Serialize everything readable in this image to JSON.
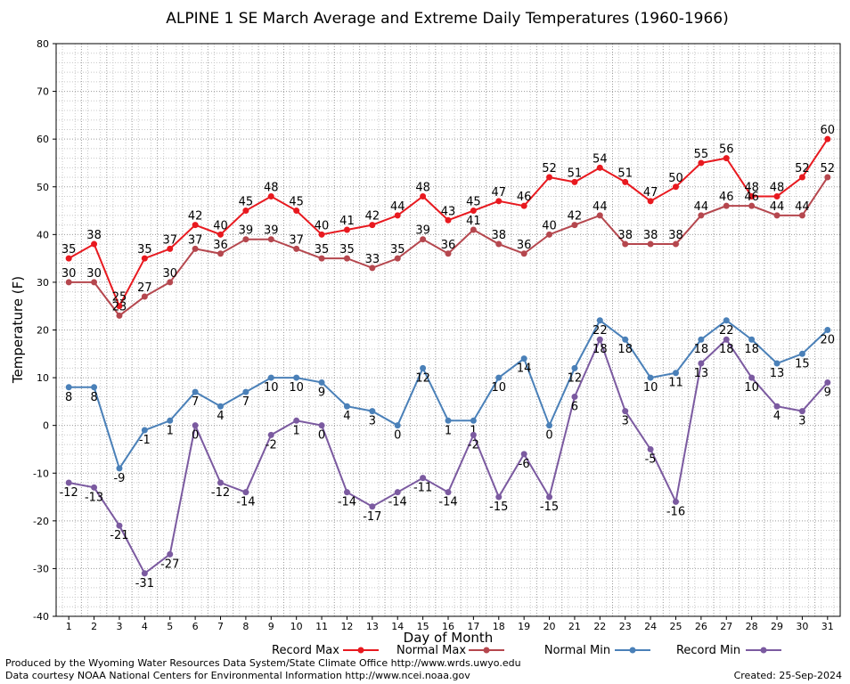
{
  "chart_data": {
    "type": "line",
    "title": "ALPINE 1 SE March Average and Extreme Daily Temperatures (1960-1966)",
    "xlabel": "Day of Month",
    "ylabel": "Temperature (F)",
    "ylim": [
      -40,
      80
    ],
    "yticks": [
      80,
      70,
      60,
      50,
      40,
      30,
      20,
      10,
      0,
      -10,
      -20,
      -30,
      -40
    ],
    "x": [
      1,
      2,
      3,
      4,
      5,
      6,
      7,
      8,
      9,
      10,
      11,
      12,
      13,
      14,
      15,
      16,
      17,
      18,
      19,
      20,
      21,
      22,
      23,
      24,
      25,
      26,
      27,
      28,
      29,
      30,
      31
    ],
    "grid": true,
    "series": [
      {
        "name": "Record Max",
        "color": "#e8191f",
        "values": [
          35,
          38,
          25,
          35,
          37,
          42,
          40,
          45,
          48,
          45,
          40,
          41,
          42,
          44,
          48,
          43,
          45,
          47,
          46,
          52,
          51,
          54,
          51,
          47,
          50,
          55,
          56,
          48,
          48,
          52,
          60
        ]
      },
      {
        "name": "Normal Max",
        "color": "#b5474e",
        "values": [
          30,
          30,
          23,
          27,
          30,
          37,
          36,
          39,
          39,
          37,
          35,
          35,
          33,
          35,
          39,
          36,
          41,
          38,
          36,
          40,
          42,
          44,
          38,
          38,
          38,
          44,
          46,
          46,
          44,
          44,
          52
        ]
      },
      {
        "name": "Normal Min",
        "color": "#4a80b8",
        "values": [
          8,
          8,
          -9,
          -1,
          1,
          7,
          4,
          7,
          10,
          10,
          9,
          4,
          3,
          0,
          12,
          1,
          1,
          10,
          14,
          0,
          12,
          22,
          18,
          10,
          11,
          18,
          22,
          18,
          13,
          15,
          20
        ]
      },
      {
        "name": "Record Min",
        "color": "#7b5aa0",
        "values": [
          -12,
          -13,
          -21,
          -31,
          -27,
          0,
          -12,
          -14,
          -2,
          1,
          0,
          -14,
          -17,
          -14,
          -11,
          -14,
          -2,
          -15,
          -6,
          -15,
          6,
          18,
          3,
          -5,
          -16,
          13,
          18,
          10,
          4,
          3,
          9
        ]
      }
    ],
    "legend_position": "bottom"
  },
  "footer": {
    "produced_by": "Produced by the Wyoming Water Resources Data System/State Climate Office http://www.wrds.uwyo.edu",
    "courtesy": "Data courtesy NOAA National Centers for Environmental Information http://www.ncei.noaa.gov",
    "created": "Created:  25-Sep-2024"
  }
}
